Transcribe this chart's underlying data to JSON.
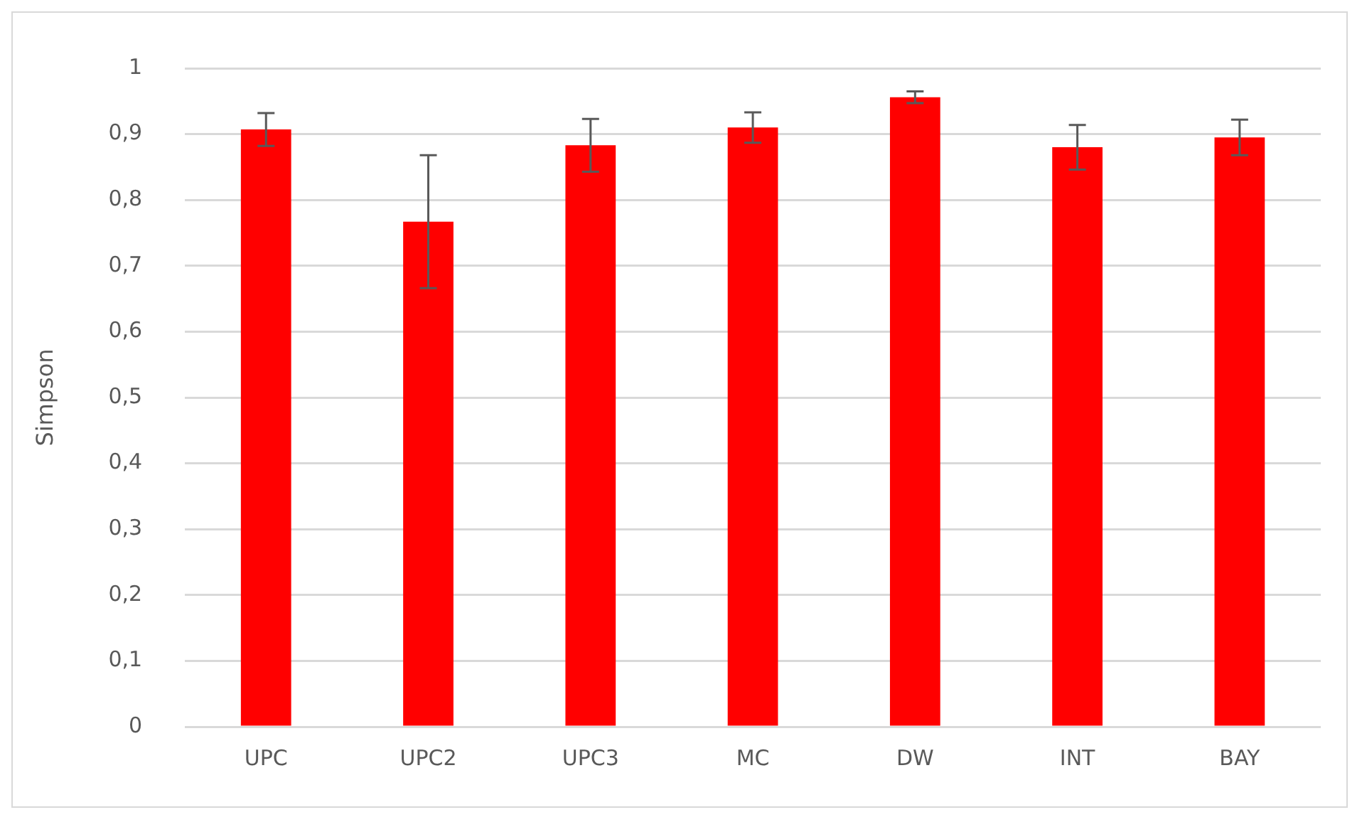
{
  "chart_data": {
    "type": "bar",
    "ylabel": "Simpson",
    "categories": [
      "UPC",
      "UPC2",
      "UPC3",
      "MC",
      "DW",
      "INT",
      "BAY"
    ],
    "values": [
      0.907,
      0.767,
      0.883,
      0.91,
      0.956,
      0.88,
      0.895
    ],
    "errors": [
      0.025,
      0.101,
      0.04,
      0.023,
      0.009,
      0.034,
      0.027
    ],
    "color": "#ff0000",
    "ylim": [
      0,
      1
    ],
    "yticks": [
      0,
      {
        "value": 0.1,
        "label": "0,1"
      },
      {
        "value": 0.2,
        "label": "0,2"
      },
      {
        "value": 0.3,
        "label": "0,3"
      },
      {
        "value": 0.4,
        "label": "0,4"
      },
      {
        "value": 0.5,
        "label": "0,5"
      },
      {
        "value": 0.6,
        "label": "0,6"
      },
      {
        "value": 0.7,
        "label": "0,7"
      },
      {
        "value": 0.8,
        "label": "0,8"
      },
      {
        "value": 0.9,
        "label": "0,9"
      },
      1
    ],
    "grid": "y"
  }
}
